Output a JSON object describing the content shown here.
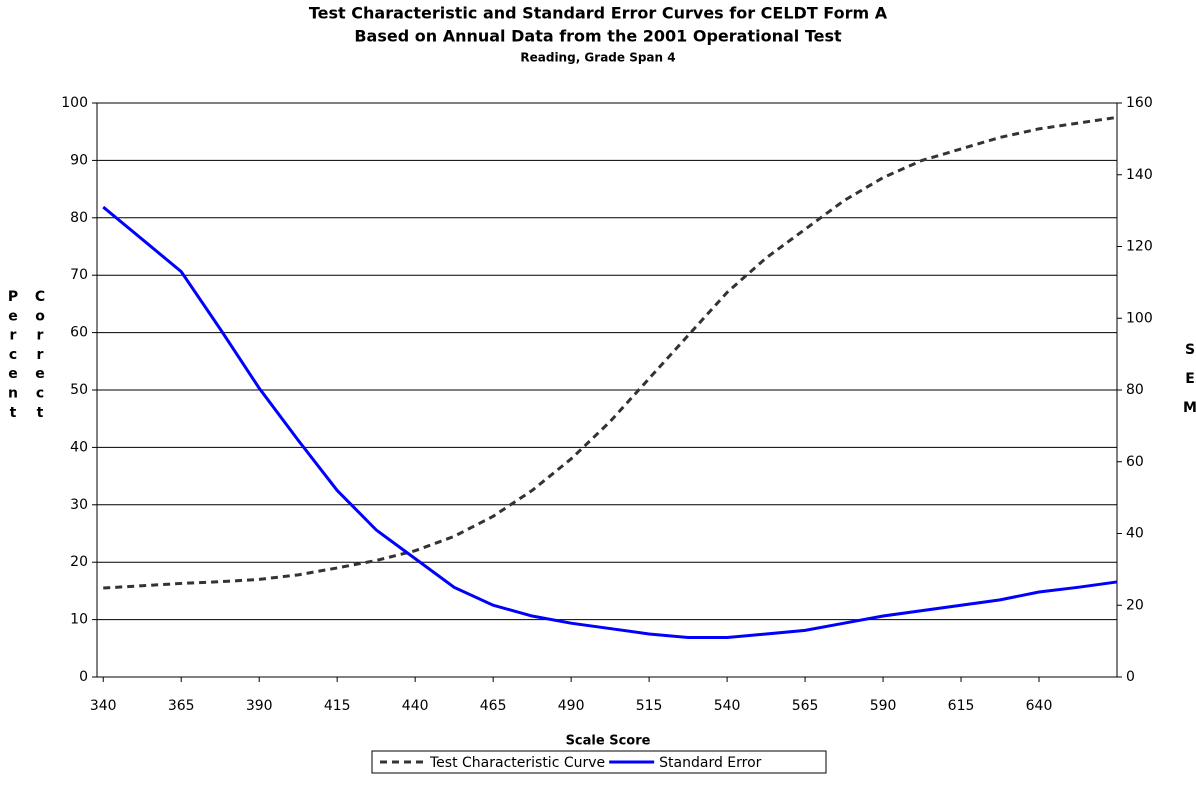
{
  "chart_data": {
    "type": "line",
    "title": "Test Characteristic and Standard Error Curves for CELDT Form A",
    "subtitle": "Based on Annual Data from the 2001 Operational Test",
    "note": "Reading, Grade Span 4",
    "x_label": "Scale Score",
    "y_label": "Percent Correct",
    "y2_label": "SEM",
    "x": [
      340,
      352.5,
      365,
      377.5,
      390,
      402.5,
      415,
      427.5,
      440,
      452.5,
      465,
      477.5,
      490,
      502.5,
      515,
      527.5,
      540,
      552.5,
      565,
      577.5,
      590,
      602.5,
      615,
      627.5,
      640,
      652.5,
      665
    ],
    "series": [
      {
        "name": "Test Characteristic Curve",
        "color": "#333333",
        "dash": true,
        "values": [
          15.5,
          15.9,
          16.3,
          16.6,
          17.0,
          17.8,
          19.0,
          20.3,
          22.0,
          24.5,
          28.0,
          32.5,
          38.0,
          44.5,
          52.0,
          59.5,
          67.0,
          73.0,
          78.0,
          83.0,
          87.0,
          90.0,
          92.0,
          94.0,
          95.5,
          96.5,
          97.5
        ]
      },
      {
        "name": "Standard Error",
        "color": "#0000ff",
        "axis": "y2",
        "values": [
          131,
          122,
          113,
          97,
          80.5,
          66,
          52,
          41,
          33,
          25,
          20,
          17,
          15,
          13.5,
          12,
          11,
          11,
          12,
          13,
          15,
          17,
          18.5,
          20,
          21.5,
          23.7,
          25,
          26.5
        ]
      }
    ],
    "xlim": [
      338,
      665
    ],
    "xticks": [
      340,
      365,
      390,
      415,
      440,
      465,
      490,
      515,
      540,
      565,
      590,
      615,
      640
    ],
    "ylim": [
      0,
      100
    ],
    "yticks": [
      0,
      10,
      20,
      30,
      40,
      50,
      60,
      70,
      80,
      90,
      100
    ],
    "y2lim": [
      0,
      160
    ],
    "y2ticks": [
      0,
      20,
      40,
      60,
      80,
      100,
      120,
      140,
      160
    ],
    "grid": true,
    "legend": "bottom"
  }
}
